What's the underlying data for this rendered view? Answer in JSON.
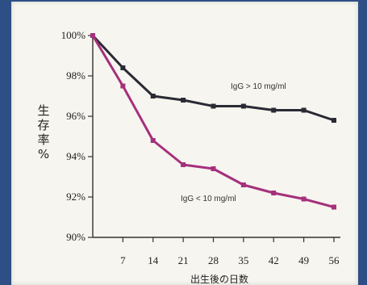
{
  "chart_data": {
    "type": "line",
    "xlabel": "出生後の日数",
    "ylabel_chars": [
      "生",
      "存",
      "率",
      "%"
    ],
    "x": [
      0,
      7,
      14,
      21,
      28,
      35,
      42,
      49,
      56
    ],
    "x_tick_labels": [
      "7",
      "14",
      "21",
      "28",
      "35",
      "42",
      "49",
      "56"
    ],
    "y_tick_labels": [
      "100%",
      "98%",
      "96%",
      "94%",
      "92%",
      "90%"
    ],
    "ylim": [
      90,
      100
    ],
    "xlim": [
      0,
      56
    ],
    "grid": false,
    "series": [
      {
        "name": "IgG > 10 mg/ml",
        "color": "#2a2a35",
        "values": [
          100,
          98.4,
          97.0,
          96.8,
          96.5,
          96.5,
          96.3,
          96.3,
          95.8
        ]
      },
      {
        "name": "IgG < 10 mg/ml",
        "color": "#a5307c",
        "values": [
          100,
          97.5,
          94.8,
          93.6,
          93.4,
          92.6,
          92.2,
          91.9,
          91.5
        ]
      }
    ]
  }
}
